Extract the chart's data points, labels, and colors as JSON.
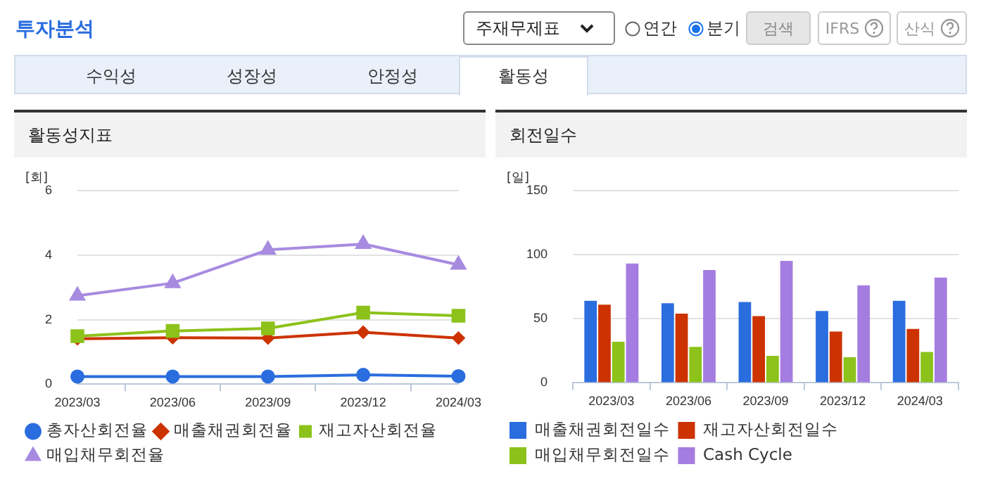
{
  "chart_data": [
    {
      "type": "line",
      "title": "활동성지표",
      "ylabel": "[회]",
      "annotations": [
        "투자분석",
        "주재무제표",
        "연간",
        "분기",
        "검색",
        "IFRS",
        "산식",
        "수익성",
        "성장성",
        "안정성",
        "활동성"
      ],
      "categories": [
        "2023/03",
        "2023/06",
        "2023/09",
        "2023/12",
        "2024/03"
      ],
      "series": [
        {
          "name": "총자산회전율",
          "color": "#2a6ddf",
          "marker": "circle",
          "values": [
            0.24,
            0.24,
            0.24,
            0.29,
            0.25
          ]
        },
        {
          "name": "매출채권회전율",
          "color": "#cc3300",
          "marker": "diamond",
          "values": [
            1.41,
            1.44,
            1.43,
            1.61,
            1.43
          ]
        },
        {
          "name": "재고자산회전율",
          "color": "#8cc21a",
          "marker": "square",
          "values": [
            1.49,
            1.65,
            1.73,
            2.22,
            2.12
          ]
        },
        {
          "name": "매입채무회전율",
          "color": "#a78be0",
          "marker": "triangle",
          "values": [
            2.74,
            3.13,
            4.16,
            4.34,
            3.7
          ]
        }
      ],
      "ylim": [
        0,
        6
      ],
      "yticks": [
        0,
        2,
        4,
        6
      ],
      "grid": "y",
      "legend": "bottom"
    },
    {
      "type": "bar",
      "title": "회전일수",
      "ylabel": "[일]",
      "categories": [
        "2023/03",
        "2023/06",
        "2023/09",
        "2023/12",
        "2024/03"
      ],
      "series": [
        {
          "name": "매출채권회전일수",
          "color": "#2a6ddf",
          "values": [
            64,
            62,
            63,
            56,
            64
          ]
        },
        {
          "name": "재고자산회전일수",
          "color": "#cc3300",
          "values": [
            61,
            54,
            52,
            40,
            42
          ]
        },
        {
          "name": "매입채무회전일수",
          "color": "#8cc21a",
          "values": [
            32,
            28,
            21,
            20,
            24
          ]
        },
        {
          "name": "Cash Cycle",
          "color": "#a57ce0",
          "values": [
            93,
            88,
            95,
            76,
            82
          ]
        }
      ],
      "ylim": [
        0,
        150
      ],
      "yticks": [
        0,
        50,
        100,
        150
      ],
      "grid": "y",
      "legend": "bottom"
    }
  ]
}
